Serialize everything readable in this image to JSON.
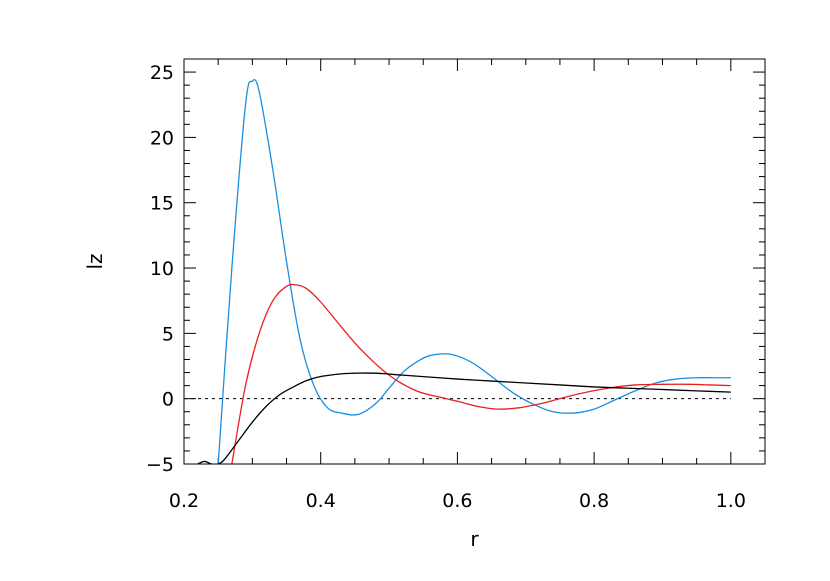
{
  "chart_data": {
    "type": "line",
    "title": "",
    "xlabel": "r",
    "ylabel": "lz",
    "xlim": [
      0.2,
      1.05
    ],
    "ylim": [
      -5,
      26
    ],
    "x_ticks": [
      "0.2",
      "0.4",
      "0.6",
      "0.8",
      "1.0"
    ],
    "y_ticks": [
      "-5",
      "0",
      "5",
      "10",
      "15",
      "20",
      "25"
    ],
    "grid": false,
    "legend": "none",
    "reference_line": {
      "y": 0,
      "style": "dotted",
      "color": "#000000"
    },
    "series": [
      {
        "color": "#1a8fe0",
        "x": [
          0.25,
          0.27,
          0.29,
          0.3,
          0.31,
          0.33,
          0.35,
          0.37,
          0.39,
          0.41,
          0.43,
          0.455,
          0.48,
          0.5,
          0.52,
          0.54,
          0.56,
          0.59,
          0.62,
          0.65,
          0.68,
          0.71,
          0.74,
          0.77,
          0.8,
          0.83,
          0.86,
          0.89,
          0.92,
          0.95,
          0.98,
          1.0
        ],
        "y": [
          -5,
          10,
          22.5,
          24.3,
          23.5,
          17.5,
          10.5,
          4.5,
          1.0,
          -0.7,
          -1.1,
          -1.2,
          -0.4,
          0.8,
          2.0,
          2.8,
          3.3,
          3.4,
          2.8,
          1.7,
          0.5,
          -0.4,
          -1.0,
          -1.1,
          -0.8,
          -0.1,
          0.6,
          1.2,
          1.5,
          1.6,
          1.6,
          1.6
        ]
      },
      {
        "color": "#e8211f",
        "x": [
          0.27,
          0.29,
          0.31,
          0.33,
          0.35,
          0.365,
          0.38,
          0.4,
          0.43,
          0.46,
          0.5,
          0.54,
          0.58,
          0.6,
          0.63,
          0.66,
          0.69,
          0.72,
          0.75,
          0.78,
          0.82,
          0.86,
          0.9,
          0.94,
          0.97,
          1.0
        ],
        "y": [
          -5,
          1.0,
          5.0,
          7.5,
          8.6,
          8.7,
          8.4,
          7.4,
          5.5,
          3.7,
          1.8,
          0.6,
          0.05,
          -0.2,
          -0.6,
          -0.8,
          -0.7,
          -0.4,
          0.0,
          0.4,
          0.8,
          1.05,
          1.1,
          1.1,
          1.05,
          1.0
        ]
      },
      {
        "color": "#000000",
        "x": [
          0.22,
          0.23,
          0.24,
          0.25,
          0.26,
          0.28,
          0.3,
          0.32,
          0.34,
          0.36,
          0.38,
          0.4,
          0.43,
          0.45,
          0.48,
          0.52,
          0.56,
          0.6,
          0.65,
          0.7,
          0.75,
          0.8,
          0.85,
          0.9,
          0.95,
          1.0
        ],
        "y": [
          -5,
          -4.8,
          -5,
          -5,
          -4.6,
          -3.2,
          -1.8,
          -0.6,
          0.3,
          0.9,
          1.4,
          1.7,
          1.9,
          1.95,
          1.95,
          1.8,
          1.65,
          1.5,
          1.35,
          1.2,
          1.05,
          0.9,
          0.8,
          0.7,
          0.6,
          0.5
        ]
      }
    ]
  }
}
